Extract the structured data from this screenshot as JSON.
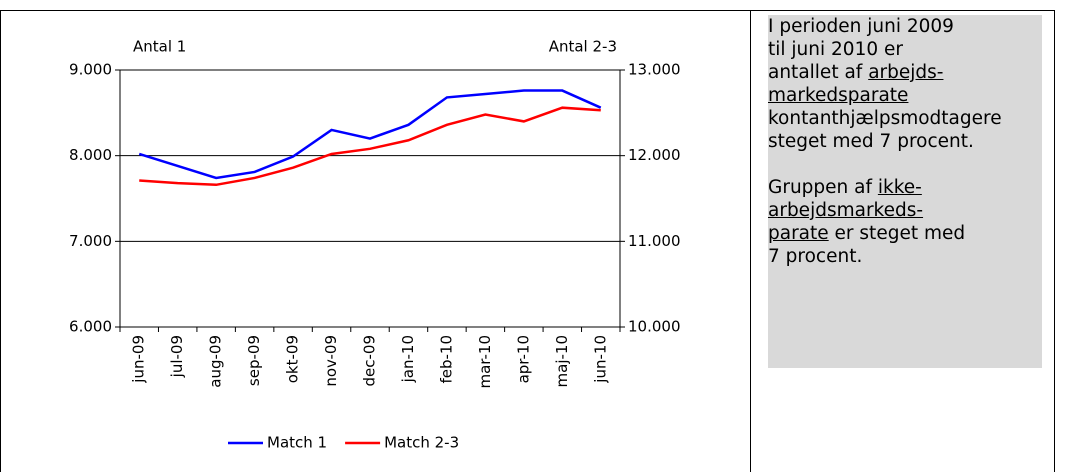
{
  "chart_data": {
    "type": "line",
    "categories": [
      "jun-09",
      "jul-09",
      "aug-09",
      "sep-09",
      "okt-09",
      "nov-09",
      "dec-09",
      "jan-10",
      "feb-10",
      "mar-10",
      "apr-10",
      "maj-10",
      "jun-10"
    ],
    "y_label": "Antal 1",
    "y2_label": "Antal 2-3",
    "ylim": [
      6000,
      9000
    ],
    "yticks": [
      {
        "value": 6000,
        "label": "6.000"
      },
      {
        "value": 7000,
        "label": "7.000"
      },
      {
        "value": 8000,
        "label": "8.000"
      },
      {
        "value": 9000,
        "label": "9.000"
      }
    ],
    "y2lim": [
      10000,
      13000
    ],
    "y2ticks": [
      {
        "value": 10000,
        "label": "10.000"
      },
      {
        "value": 11000,
        "label": "11.000"
      },
      {
        "value": 12000,
        "label": "12.000"
      },
      {
        "value": 13000,
        "label": "13.000"
      }
    ],
    "grid": true,
    "legend": "bottom",
    "series": [
      {
        "name": "Match 1",
        "color": "#0000ff",
        "values": [
          8020,
          7880,
          7740,
          7810,
          7990,
          8300,
          8200,
          8360,
          8680,
          8720,
          8760,
          8760,
          8560
        ]
      },
      {
        "name": "Match 2-3",
        "color": "#ff0000",
        "axis": "y2",
        "values": [
          11710,
          11680,
          11660,
          11740,
          11860,
          12020,
          12080,
          12180,
          12360,
          12480,
          12400,
          12560,
          12530
        ]
      }
    ]
  },
  "note": {
    "lines": [
      [
        {
          "text": "I perioden juni 2009"
        }
      ],
      [
        {
          "text": "til juni 2010 er"
        }
      ],
      [
        {
          "text": "antallet af "
        },
        {
          "text": "arbejds-",
          "underline": true
        }
      ],
      [
        {
          "text": "markedsparate",
          "underline": true
        }
      ],
      [
        {
          "text": "kontanthjælpsmodtagere"
        }
      ],
      [
        {
          "text": "steget med 7 procent."
        }
      ],
      [],
      [
        {
          "text": "Gruppen af "
        },
        {
          "text": "ikke-",
          "underline": true
        }
      ],
      [
        {
          "text": "arbejdsmarkeds-",
          "underline": true
        }
      ],
      [
        {
          "text": "parate",
          "underline": true
        },
        {
          "text": " er steget med"
        }
      ],
      [
        {
          "text": "7 procent."
        }
      ]
    ]
  }
}
